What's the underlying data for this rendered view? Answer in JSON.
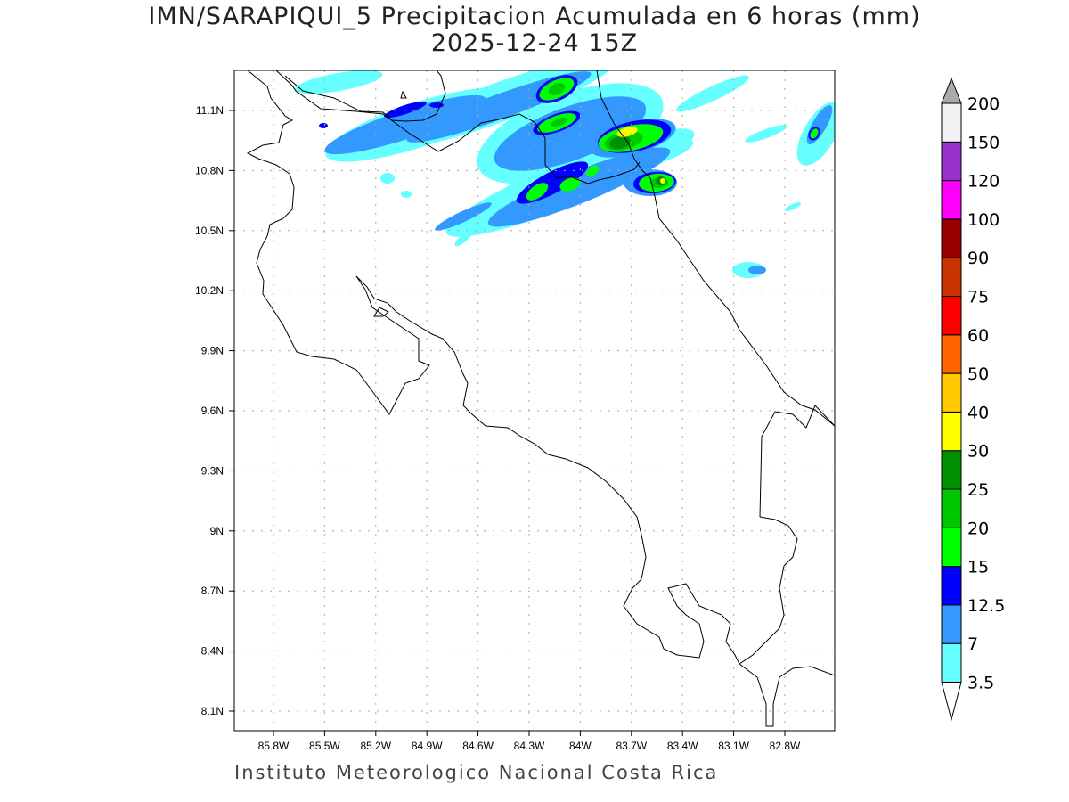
{
  "title": {
    "line1": "IMN/SARAPIQUI_5 Precipitacion Acumulada en 6 horas (mm)",
    "line2": "2025-12-24 15Z"
  },
  "footer": "Instituto Meteorologico Nacional Costa Rica",
  "map": {
    "lon_ticks": [
      "85.8W",
      "85.5W",
      "85.2W",
      "84.9W",
      "84.6W",
      "84.3W",
      "84W",
      "83.7W",
      "83.4W",
      "83.1W",
      "82.8W"
    ],
    "lat_ticks": [
      "11.1N",
      "10.8N",
      "10.5N",
      "10.2N",
      "9.9N",
      "9.6N",
      "9.3N",
      "9N",
      "8.7N",
      "8.4N",
      "8.1N"
    ],
    "grid": "dotted"
  },
  "colorbar": {
    "levels": [
      "3.5",
      "7",
      "12.5",
      "15",
      "20",
      "25",
      "30",
      "40",
      "50",
      "60",
      "75",
      "90",
      "100",
      "120",
      "150",
      "200"
    ],
    "colors": [
      "#66ffff",
      "#3399ff",
      "#0000ff",
      "#00ff00",
      "#00c800",
      "#009100",
      "#ffff00",
      "#ffc800",
      "#ff6400",
      "#ff0000",
      "#c83200",
      "#960000",
      "#ff00ff",
      "#9932cc",
      "#f2f2f2"
    ],
    "over_color": "#aaaaaa",
    "under_color": "#ffffff"
  }
}
